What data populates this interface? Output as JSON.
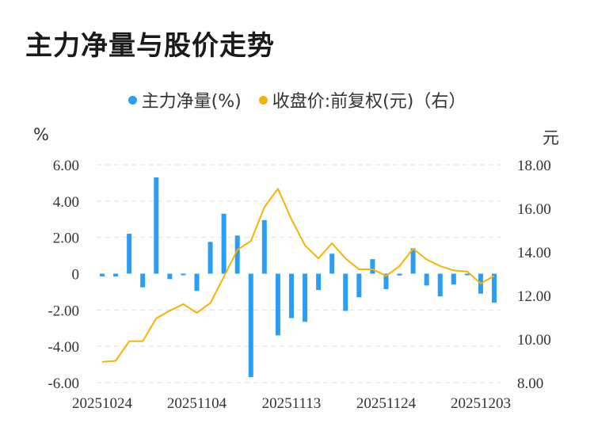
{
  "title": "主力净量与股价走势",
  "legend": {
    "bar_label": "主力净量(%)",
    "line_label": "收盘价:前复权(元)（右）"
  },
  "units": {
    "left": "%",
    "right": "元"
  },
  "colors": {
    "bar": "#2a9df4",
    "line": "#f5b400",
    "grid": "#e0e0e0"
  },
  "chart_data": {
    "type": "bar",
    "x_tick_labels": [
      "20251024",
      "20251104",
      "20251113",
      "20251124",
      "20251203"
    ],
    "x_tick_indices": [
      0,
      7,
      14,
      21,
      28
    ],
    "left_axis": {
      "ylim": [
        -6,
        6
      ],
      "ticks": [
        "6.00",
        "4.00",
        "2.00",
        "0",
        "-2.00",
        "-4.00",
        "-6.00"
      ]
    },
    "right_axis": {
      "ylim": [
        8,
        18
      ],
      "ticks": [
        "18.00",
        "16.00",
        "14.00",
        "12.00",
        "10.00",
        "8.00"
      ]
    },
    "series": [
      {
        "name": "主力净量(%)",
        "type": "bar",
        "axis": "left",
        "values": [
          -0.15,
          -0.15,
          2.2,
          -0.75,
          5.3,
          -0.3,
          -0.05,
          -0.95,
          1.75,
          3.3,
          2.1,
          -5.7,
          2.95,
          -3.4,
          -2.45,
          -2.65,
          -0.9,
          1.1,
          -2.05,
          -1.3,
          0.8,
          -0.85,
          -0.1,
          1.4,
          -0.65,
          -1.25,
          -0.6,
          -0.05,
          -1.1,
          -1.6
        ]
      },
      {
        "name": "收盘价:前复权(元)（右）",
        "type": "line",
        "axis": "right",
        "values": [
          8.95,
          9.0,
          9.9,
          9.9,
          10.95,
          11.3,
          11.6,
          11.2,
          11.65,
          12.85,
          14.1,
          14.5,
          16.05,
          16.9,
          15.5,
          14.3,
          13.7,
          14.4,
          13.7,
          13.2,
          13.2,
          12.9,
          13.35,
          14.15,
          13.65,
          13.35,
          13.15,
          13.1,
          12.55,
          12.9
        ]
      }
    ]
  }
}
